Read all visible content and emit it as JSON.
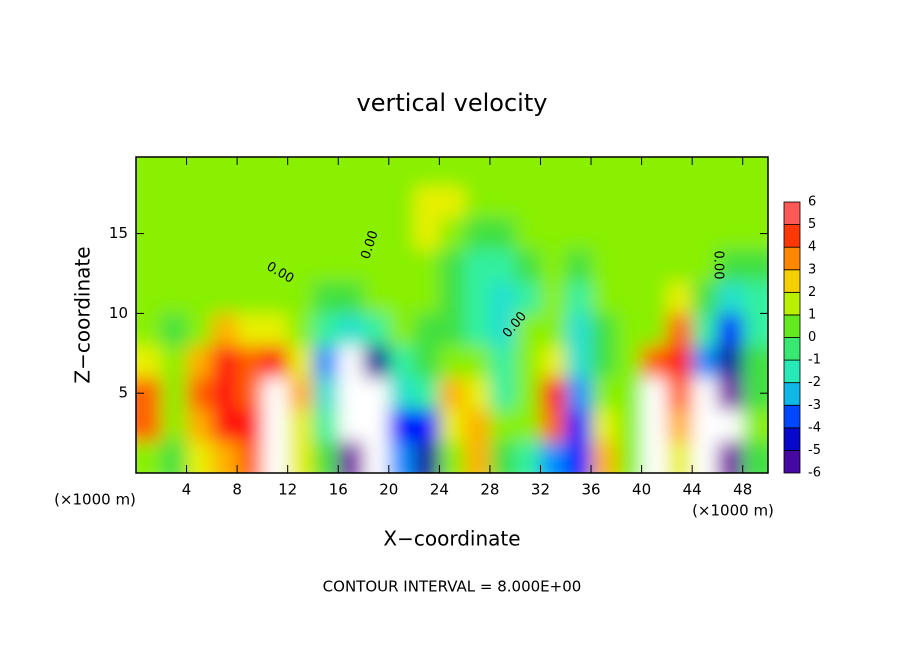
{
  "chart_data": {
    "type": "heatmap",
    "title": "vertical velocity",
    "xlabel": "X−coordinate",
    "ylabel": "Z−coordinate",
    "x_unit": "(×1000 m)",
    "footer": "CONTOUR INTERVAL = 8.000E+00",
    "contour_labels": [
      "0.00",
      "0.00",
      "0.00",
      "0.00"
    ],
    "xlim": [
      0,
      50
    ],
    "xticks": [
      4,
      8,
      12,
      16,
      20,
      24,
      28,
      32,
      36,
      40,
      44,
      48
    ],
    "ylim": [
      0,
      19.8
    ],
    "yticks": [
      5,
      10,
      15
    ],
    "zlim": [
      -6,
      6
    ],
    "zticks": [
      -6,
      -5,
      -4,
      -3,
      -2,
      -1,
      0,
      1,
      2,
      3,
      4,
      5,
      6
    ],
    "x": [
      1,
      3,
      5,
      7,
      9,
      11,
      13,
      15,
      17,
      19,
      21,
      23,
      25,
      27,
      29,
      31,
      33,
      35,
      37,
      39,
      41,
      43,
      45,
      47,
      49
    ],
    "y": [
      1,
      3,
      5,
      7,
      9,
      11,
      13,
      15,
      17,
      19
    ],
    "z": [
      [
        1,
        0,
        2,
        3,
        4,
        7,
        2,
        0,
        -6,
        -7,
        -3,
        -5,
        1,
        3,
        0,
        -1,
        -3,
        -4,
        3,
        1,
        7,
        2,
        -7,
        -6,
        0
      ],
      [
        4,
        1,
        3,
        5,
        5,
        8,
        2,
        -1,
        -8,
        -8,
        -4,
        -4,
        2,
        3,
        1,
        1,
        4,
        -4,
        2,
        1,
        8,
        3,
        -8,
        -7,
        1
      ],
      [
        4,
        1,
        4,
        5,
        4,
        7,
        3,
        -2,
        -8,
        -7,
        -2,
        -1,
        3,
        2,
        -1,
        1,
        5,
        -3,
        1,
        1,
        8,
        4,
        -7,
        -6,
        0
      ],
      [
        2,
        1,
        3,
        5,
        4,
        5,
        2,
        -3,
        -7,
        -5,
        -1,
        0,
        1,
        1,
        -1,
        1,
        2,
        -2,
        0,
        1,
        4,
        5,
        -3,
        -5,
        0
      ],
      [
        1,
        0,
        1,
        3,
        2,
        2,
        1,
        -1,
        -2,
        -1,
        1,
        0,
        0,
        -1,
        -2,
        1,
        1,
        -2,
        0,
        1,
        1,
        4,
        -1,
        -4,
        -1
      ],
      [
        1,
        1,
        1,
        1,
        1,
        1,
        1,
        0,
        0,
        1,
        1,
        1,
        0,
        -1,
        -2,
        -1,
        1,
        -1,
        1,
        1,
        1,
        2,
        0,
        -2,
        -1
      ],
      [
        1,
        1,
        1,
        1,
        1,
        1,
        1,
        1,
        1,
        1,
        1,
        1,
        0,
        -1,
        -1,
        0,
        1,
        0,
        1,
        1,
        1,
        1,
        1,
        0,
        0
      ],
      [
        1,
        1,
        1,
        1,
        1,
        1,
        1,
        1,
        1,
        1,
        1,
        2,
        1,
        0,
        0,
        1,
        1,
        1,
        1,
        1,
        1,
        1,
        1,
        1,
        1
      ],
      [
        1,
        1,
        1,
        1,
        1,
        1,
        1,
        1,
        1,
        1,
        1,
        2,
        2,
        1,
        1,
        1,
        1,
        1,
        1,
        1,
        1,
        1,
        1,
        1,
        1
      ],
      [
        1,
        1,
        1,
        1,
        1,
        1,
        1,
        1,
        1,
        1,
        1,
        1,
        1,
        1,
        1,
        1,
        1,
        1,
        1,
        1,
        1,
        1,
        1,
        1,
        1
      ]
    ]
  }
}
